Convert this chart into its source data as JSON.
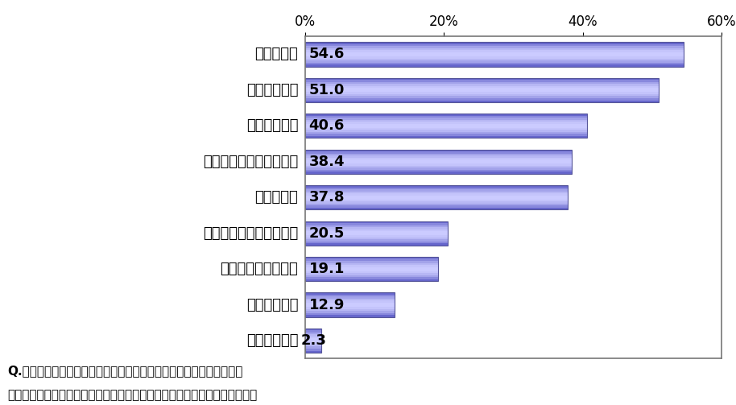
{
  "categories": [
    "その他（　）",
    "スポーツ観戦",
    "ウィンタースポーツ",
    "今年出来た観光スポット",
    "紅葉めぐり",
    "イルミネーションめぐり",
    "初詣・初売り",
    "テーマパーク",
    "温泉めぐり"
  ],
  "values": [
    2.3,
    12.9,
    19.1,
    20.5,
    37.8,
    38.4,
    40.6,
    51.0,
    54.6
  ],
  "bar_color_dark": "#6666cc",
  "bar_color_light": "#ccccff",
  "bar_color_mid": "#8888ee",
  "bar_edge_color": "#555599",
  "background_color": "#ffffff",
  "plot_bg_color": "#ffffff",
  "xlim": [
    0,
    60
  ],
  "xticks": [
    0,
    20,
    40,
    60
  ],
  "xticklabels": [
    "0%",
    "20%",
    "40%",
    "60%"
  ],
  "footnote_line1": "Q.あなたがこの冬、ご家族、ご友人、恐人と一緒に行ってみたいお出",
  "footnote_line2": "かけスポットについて、あてはまるものをお答えください。（いくつでも）",
  "value_label_fontsize": 13,
  "category_fontsize": 13,
  "tick_fontsize": 12,
  "footnote_fontsize": 11,
  "bar_height": 0.68,
  "n_gradient_lines": 12
}
